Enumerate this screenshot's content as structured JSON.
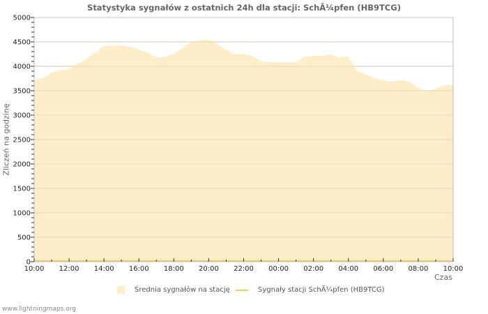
{
  "chart_data": {
    "type": "area",
    "title": "Statystyka sygnałów z ostatnich 24h dla stacji: SchÃ¼pfen (HB9TCG)",
    "xlabel": "Czas",
    "ylabel": "Zliczeń na godzinę",
    "ylim": [
      0,
      5000
    ],
    "yticks": [
      0,
      500,
      1000,
      1500,
      2000,
      2500,
      3000,
      3500,
      4000,
      4500,
      5000
    ],
    "xtick_labels": [
      "10:00",
      "12:00",
      "14:00",
      "16:00",
      "18:00",
      "20:00",
      "22:00",
      "00:00",
      "02:00",
      "04:00",
      "06:00",
      "08:00",
      "10:00"
    ],
    "grid": true,
    "legend_position": "bottom",
    "x": [
      "10:00",
      "10:30",
      "11:00",
      "11:30",
      "12:00",
      "12:30",
      "13:00",
      "13:30",
      "14:00",
      "14:30",
      "15:00",
      "15:30",
      "16:00",
      "16:30",
      "17:00",
      "17:30",
      "18:00",
      "18:30",
      "19:00",
      "19:30",
      "20:00",
      "20:30",
      "21:00",
      "21:30",
      "22:00",
      "22:30",
      "23:00",
      "23:30",
      "00:00",
      "00:30",
      "01:00",
      "01:30",
      "02:00",
      "02:30",
      "03:00",
      "03:30",
      "04:00",
      "04:30",
      "05:00",
      "05:30",
      "06:00",
      "06:30",
      "07:00",
      "07:30",
      "08:00",
      "08:30",
      "09:00",
      "09:30",
      "10:00"
    ],
    "series": [
      {
        "name": "Średnia sygnałów na stację",
        "style": "area",
        "color": "#fdedc8",
        "values": [
          3710,
          3760,
          3870,
          3920,
          3950,
          4050,
          4150,
          4280,
          4420,
          4420,
          4430,
          4400,
          4340,
          4280,
          4180,
          4200,
          4250,
          4380,
          4500,
          4530,
          4550,
          4450,
          4330,
          4250,
          4250,
          4210,
          4100,
          4090,
          4080,
          4080,
          4080,
          4200,
          4210,
          4210,
          4240,
          4180,
          4200,
          3900,
          3830,
          3750,
          3720,
          3680,
          3720,
          3680,
          3560,
          3480,
          3540,
          3610,
          3620
        ]
      },
      {
        "name": "Sygnały stacji SchÃ¼pfen (HB9TCG)",
        "style": "line",
        "color": "#f5cc55",
        "values": [
          0,
          0,
          0,
          0,
          0,
          0,
          0,
          0,
          0,
          0,
          0,
          0,
          0,
          0,
          0,
          0,
          0,
          0,
          0,
          0,
          0,
          0,
          0,
          0,
          0,
          0,
          0,
          0,
          0,
          0,
          0,
          0,
          0,
          0,
          0,
          0,
          0,
          0,
          0,
          0,
          0,
          0,
          0,
          0,
          0,
          0,
          0,
          0,
          0
        ]
      }
    ]
  },
  "labels": {
    "title": "Statystyka sygnałów z ostatnich 24h dla stacji: SchÃ¼pfen (HB9TCG)",
    "ylabel": "Zliczeń na godzinę",
    "xlabel": "Czas",
    "legend_avg": "Średnia sygnałów na stację",
    "legend_station": "Sygnały stacji SchÃ¼pfen (HB9TCG)",
    "footer": "www.lightningmaps.org"
  },
  "colors": {
    "area_fill": "#fdedc8",
    "station_line": "#f5cc55",
    "grid": "#cccccc",
    "grid_in_area": "#d9c7a0",
    "axis": "#bbbbbb"
  }
}
